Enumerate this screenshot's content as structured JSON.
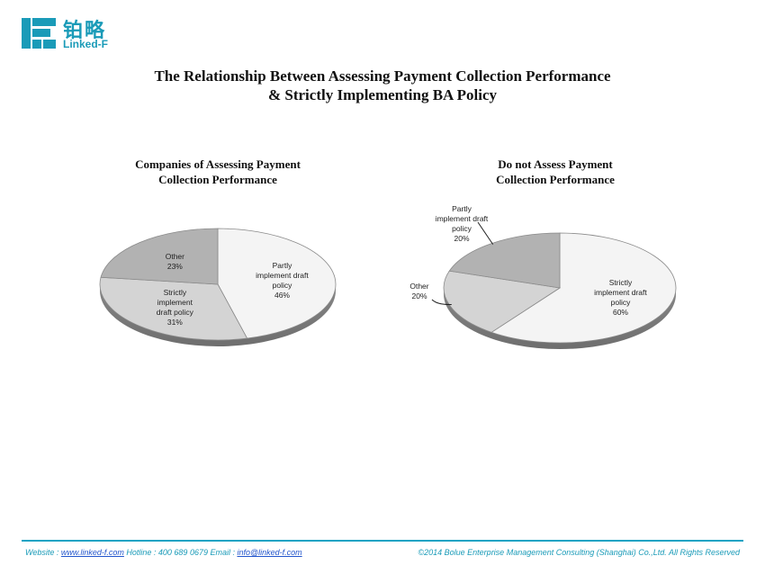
{
  "logo": {
    "cn": "铂略",
    "en": "Linked-F"
  },
  "title": {
    "line1": "The Relationship Between Assessing Payment Collection Performance",
    "line2": "& Strictly Implementing BA Policy"
  },
  "chart_data": [
    {
      "type": "pie",
      "title_line1": "Companies of Assessing Payment",
      "title_line2": "Collection Performance",
      "slices": [
        {
          "label_lines": [
            "Partly",
            "implement draft",
            "policy"
          ],
          "value": 46,
          "pct_label": "46%",
          "color": "#f4f4f4"
        },
        {
          "label_lines": [
            "Strictly",
            "implement",
            "draft policy"
          ],
          "value": 31,
          "pct_label": "31%",
          "color": "#d4d4d4"
        },
        {
          "label_lines": [
            "Other"
          ],
          "value": 23,
          "pct_label": "23%",
          "color": "#b2b2b2"
        }
      ]
    },
    {
      "type": "pie",
      "title_line1": "Do not Assess Payment",
      "title_line2": "Collection Performance",
      "slices": [
        {
          "label_lines": [
            "Strictly",
            "implement draft",
            "policy"
          ],
          "value": 60,
          "pct_label": "60%",
          "color": "#f4f4f4"
        },
        {
          "label_lines": [
            "Other"
          ],
          "value": 20,
          "pct_label": "20%",
          "color": "#d4d4d4"
        },
        {
          "label_lines": [
            "Partly",
            "implement draft",
            "policy"
          ],
          "value": 20,
          "pct_label": "20%",
          "color": "#b2b2b2"
        }
      ]
    }
  ],
  "footer": {
    "website_label": "Website : ",
    "website": "www.linked-f.com",
    "hotline": "  Hotline : 400 689 0679   Email : ",
    "email": "info@linked-f.com",
    "copyright": "©2014 Bolue Enterprise Management Consulting (Shanghai) Co.,Ltd. All Rights Reserved"
  }
}
